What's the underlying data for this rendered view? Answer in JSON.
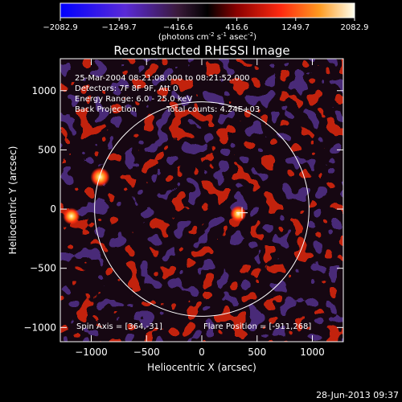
{
  "colorbar": {
    "ticks": [
      "-2082.9",
      "-1249.7",
      "-416.6",
      "416.6",
      "1249.7",
      "2082.9"
    ],
    "unit_label_parts": [
      "(photons cm",
      "-2",
      " s",
      "-1",
      " asec",
      "-2",
      ")"
    ]
  },
  "chart_data": {
    "type": "heatmap",
    "title": "Reconstructed RHESSI Image",
    "xlabel": "Heliocentric X (arcsec)",
    "ylabel": "Heliocentric Y (arcsec)",
    "xlim": [
      -1280,
      1280
    ],
    "ylim": [
      -1120,
      1270
    ],
    "xticks": [
      -1000,
      -500,
      0,
      500,
      1000
    ],
    "yticks": [
      -1000,
      -500,
      0,
      500,
      1000
    ],
    "xtick_labels": [
      "−1000",
      "−500",
      "0",
      "500",
      "1000"
    ],
    "ytick_labels": [
      "−1000",
      "−500",
      "0",
      "500",
      "1000"
    ],
    "value_range": [
      -2082.9,
      2082.9
    ],
    "solar_disk": {
      "center": [
        0,
        0
      ],
      "radius_arcsec": 970
    },
    "crosshair": {
      "x": 364,
      "y": -31
    },
    "bright_sources": [
      {
        "x": -920,
        "y": 270,
        "intensity": 1.0
      },
      {
        "x": -1180,
        "y": -60,
        "intensity": 0.75
      },
      {
        "x": 330,
        "y": -40,
        "intensity": 0.7
      }
    ],
    "annotations": [
      "25-Mar-2004 08:21:08.000 to 08:21:52.000",
      "Detectors: 7F 8F 9F, Att 0",
      "Energy Range: 6.0 - 25.0 keV",
      "Back Projection",
      "Total counts: 4.24E+03"
    ],
    "spin_axis": "Spin Axis = [364,-31]",
    "flare_position": "Flare Position = [-911,268]"
  },
  "footer": {
    "timestamp": "28-Jun-2013 09:37"
  }
}
